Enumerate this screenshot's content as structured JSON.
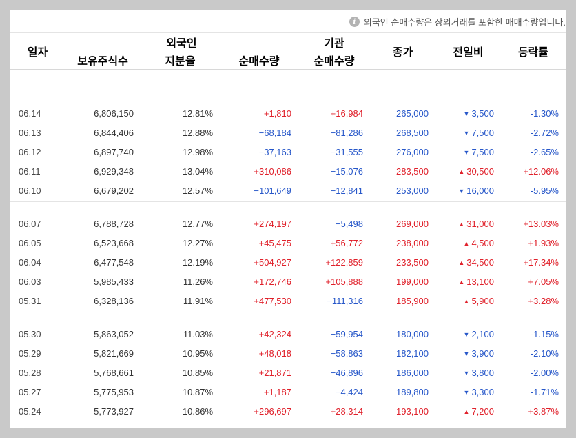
{
  "notice": {
    "text": "외국인 순매수량은 장외거래를 포함한 매매수량입니다."
  },
  "header": {
    "date": "일자",
    "foreign": "외국인",
    "institution": "기관",
    "close": "종가",
    "change": "전일비",
    "rate": "등락률",
    "holdings": "보유주식수",
    "share": "지분율",
    "foreign_net": "순매수량",
    "inst_net": "순매수량"
  },
  "groups": [
    [
      {
        "date": "06.14",
        "holdings": "6,806,150",
        "share": "12.81%",
        "foreign_net": "+1,810",
        "fdir": "up",
        "inst_net": "+16,984",
        "idir": "up",
        "close": "265,000",
        "dir": "down",
        "change": "3,500",
        "rate": "-1.30%"
      },
      {
        "date": "06.13",
        "holdings": "6,844,406",
        "share": "12.88%",
        "foreign_net": "−68,184",
        "fdir": "down",
        "inst_net": "−81,286",
        "idir": "down",
        "close": "268,500",
        "dir": "down",
        "change": "7,500",
        "rate": "-2.72%"
      },
      {
        "date": "06.12",
        "holdings": "6,897,740",
        "share": "12.98%",
        "foreign_net": "−37,163",
        "fdir": "down",
        "inst_net": "−31,555",
        "idir": "down",
        "close": "276,000",
        "dir": "down",
        "change": "7,500",
        "rate": "-2.65%"
      },
      {
        "date": "06.11",
        "holdings": "6,929,348",
        "share": "13.04%",
        "foreign_net": "+310,086",
        "fdir": "up",
        "inst_net": "−15,076",
        "idir": "down",
        "close": "283,500",
        "dir": "up",
        "change": "30,500",
        "rate": "+12.06%"
      },
      {
        "date": "06.10",
        "holdings": "6,679,202",
        "share": "12.57%",
        "foreign_net": "−101,649",
        "fdir": "down",
        "inst_net": "−12,841",
        "idir": "down",
        "close": "253,000",
        "dir": "down",
        "change": "16,000",
        "rate": "-5.95%"
      }
    ],
    [
      {
        "date": "06.07",
        "holdings": "6,788,728",
        "share": "12.77%",
        "foreign_net": "+274,197",
        "fdir": "up",
        "inst_net": "−5,498",
        "idir": "down",
        "close": "269,000",
        "dir": "up",
        "change": "31,000",
        "rate": "+13.03%"
      },
      {
        "date": "06.05",
        "holdings": "6,523,668",
        "share": "12.27%",
        "foreign_net": "+45,475",
        "fdir": "up",
        "inst_net": "+56,772",
        "idir": "up",
        "close": "238,000",
        "dir": "up",
        "change": "4,500",
        "rate": "+1.93%"
      },
      {
        "date": "06.04",
        "holdings": "6,477,548",
        "share": "12.19%",
        "foreign_net": "+504,927",
        "fdir": "up",
        "inst_net": "+122,859",
        "idir": "up",
        "close": "233,500",
        "dir": "up",
        "change": "34,500",
        "rate": "+17.34%"
      },
      {
        "date": "06.03",
        "holdings": "5,985,433",
        "share": "11.26%",
        "foreign_net": "+172,746",
        "fdir": "up",
        "inst_net": "+105,888",
        "idir": "up",
        "close": "199,000",
        "dir": "up",
        "change": "13,100",
        "rate": "+7.05%"
      },
      {
        "date": "05.31",
        "holdings": "6,328,136",
        "share": "11.91%",
        "foreign_net": "+477,530",
        "fdir": "up",
        "inst_net": "−111,316",
        "idir": "down",
        "close": "185,900",
        "dir": "up",
        "change": "5,900",
        "rate": "+3.28%"
      }
    ],
    [
      {
        "date": "05.30",
        "holdings": "5,863,052",
        "share": "11.03%",
        "foreign_net": "+42,324",
        "fdir": "up",
        "inst_net": "−59,954",
        "idir": "down",
        "close": "180,000",
        "dir": "down",
        "change": "2,100",
        "rate": "-1.15%"
      },
      {
        "date": "05.29",
        "holdings": "5,821,669",
        "share": "10.95%",
        "foreign_net": "+48,018",
        "fdir": "up",
        "inst_net": "−58,863",
        "idir": "down",
        "close": "182,100",
        "dir": "down",
        "change": "3,900",
        "rate": "-2.10%"
      },
      {
        "date": "05.28",
        "holdings": "5,768,661",
        "share": "10.85%",
        "foreign_net": "+21,871",
        "fdir": "up",
        "inst_net": "−46,896",
        "idir": "down",
        "close": "186,000",
        "dir": "down",
        "change": "3,800",
        "rate": "-2.00%"
      },
      {
        "date": "05.27",
        "holdings": "5,775,953",
        "share": "10.87%",
        "foreign_net": "+1,187",
        "fdir": "up",
        "inst_net": "−4,424",
        "idir": "down",
        "close": "189,800",
        "dir": "down",
        "change": "3,300",
        "rate": "-1.71%"
      },
      {
        "date": "05.24",
        "holdings": "5,773,927",
        "share": "10.86%",
        "foreign_net": "+296,697",
        "fdir": "up",
        "inst_net": "+28,314",
        "idir": "up",
        "close": "193,100",
        "dir": "up",
        "change": "7,200",
        "rate": "+3.87%"
      }
    ]
  ],
  "colors": {
    "up": "#e0212b",
    "down": "#2757c9"
  },
  "icons": {
    "info": "info-icon",
    "up": "triangle-up-icon",
    "down": "triangle-down-icon"
  }
}
